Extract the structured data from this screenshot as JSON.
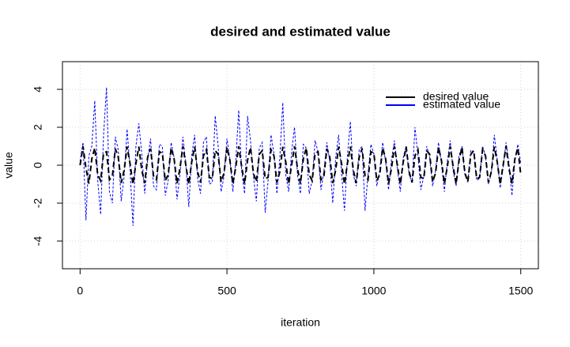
{
  "chart_data": {
    "type": "line",
    "title": "desired and estimated value",
    "xlabel": "iteration",
    "ylabel": "value",
    "x": [
      0,
      10,
      20,
      30,
      40,
      50,
      60,
      70,
      80,
      90,
      100,
      110,
      120,
      130,
      140,
      150,
      160,
      170,
      180,
      190,
      200,
      210,
      220,
      230,
      240,
      250,
      260,
      270,
      280,
      290,
      300,
      310,
      320,
      330,
      340,
      350,
      360,
      370,
      380,
      390,
      400,
      410,
      420,
      430,
      440,
      450,
      460,
      470,
      480,
      490,
      500,
      510,
      520,
      530,
      540,
      550,
      560,
      570,
      580,
      590,
      600,
      610,
      620,
      630,
      640,
      650,
      660,
      670,
      680,
      690,
      700,
      710,
      720,
      730,
      740,
      750,
      760,
      770,
      780,
      790,
      800,
      810,
      820,
      830,
      840,
      850,
      860,
      870,
      880,
      890,
      900,
      910,
      920,
      930,
      940,
      950,
      960,
      970,
      980,
      990,
      1000,
      1010,
      1020,
      1030,
      1040,
      1050,
      1060,
      1070,
      1080,
      1090,
      1100,
      1110,
      1120,
      1130,
      1140,
      1150,
      1160,
      1170,
      1180,
      1190,
      1200,
      1210,
      1220,
      1230,
      1240,
      1250,
      1260,
      1270,
      1280,
      1290,
      1300,
      1310,
      1320,
      1330,
      1340,
      1350,
      1360,
      1370,
      1380,
      1390,
      1400,
      1410,
      1420,
      1430,
      1440,
      1450,
      1460,
      1470,
      1480,
      1490,
      1500
    ],
    "series": [
      {
        "name": "desired value",
        "color": "#000000",
        "values": [
          0,
          1.0,
          -0.17,
          -0.97,
          0.34,
          0.91,
          -0.5,
          -0.82,
          0.64,
          0.71,
          -0.77,
          -0.57,
          0.87,
          0.42,
          -0.94,
          -0.26,
          0.98,
          0.09,
          -1,
          0.09,
          0.98,
          -0.26,
          -0.94,
          0.42,
          0.87,
          -0.57,
          -0.77,
          0.71,
          0.64,
          -0.82,
          -0.5,
          0.91,
          0.34,
          -0.97,
          -0.17,
          1.0,
          0,
          -1.0,
          0.17,
          0.97,
          -0.34,
          -0.91,
          0.5,
          0.82,
          -0.64,
          -0.71,
          0.77,
          0.57,
          -0.87,
          -0.42,
          0.94,
          0.26,
          -0.98,
          -0.09,
          1,
          -0.09,
          -0.98,
          0.26,
          0.94,
          -0.42,
          -0.87,
          0.57,
          0.77,
          -0.71,
          -0.64,
          0.82,
          0.5,
          -0.91,
          -0.34,
          0.97,
          0.17,
          -1.0,
          0,
          1.0,
          -0.17,
          -0.97,
          0.34,
          0.91,
          -0.5,
          -0.82,
          0.64,
          0.71,
          -0.77,
          -0.57,
          0.87,
          0.42,
          -0.94,
          -0.26,
          0.98,
          0.09,
          -1,
          0.09,
          0.98,
          -0.26,
          -0.94,
          0.42,
          0.87,
          -0.57,
          -0.77,
          0.71,
          0.64,
          -0.82,
          -0.5,
          0.91,
          0.34,
          -0.97,
          -0.17,
          1.0,
          0,
          -1.0,
          0.17,
          0.97,
          -0.34,
          -0.91,
          0.5,
          0.82,
          -0.64,
          -0.71,
          0.77,
          0.57,
          -0.87,
          -0.42,
          0.94,
          0.26,
          -0.98,
          -0.09,
          1,
          -0.09,
          -0.98,
          0.26,
          0.94,
          -0.42,
          -0.87,
          0.57,
          0.77,
          -0.71,
          -0.64,
          0.82,
          0.5,
          -0.91,
          -0.34,
          0.97,
          0.17,
          -1.0,
          0,
          1.0,
          -0.17,
          -0.97,
          0.34,
          0.91,
          -0.5
        ]
      },
      {
        "name": "estimated value",
        "color": "#0000ff",
        "values": [
          0.2,
          1.2,
          -2.9,
          0.5,
          1.0,
          3.4,
          -0.8,
          -2.6,
          1.6,
          4.1,
          -1.4,
          -2.0,
          1.5,
          0.8,
          -1.9,
          -0.6,
          1.9,
          -0.2,
          -3.2,
          1.0,
          2.2,
          0.6,
          -1.5,
          0.3,
          1.4,
          -1.1,
          -1.3,
          1.1,
          1.0,
          -1.6,
          -0.8,
          1.2,
          0.4,
          -1.8,
          -0.5,
          1.5,
          0.1,
          -2.2,
          0.5,
          1.6,
          -0.7,
          -1.5,
          1.2,
          1.5,
          -1.0,
          -0.9,
          2.6,
          1.0,
          -1.4,
          -0.6,
          1.4,
          0.3,
          -1.4,
          0.2,
          2.9,
          -0.3,
          -1.5,
          2.6,
          1.3,
          -0.6,
          -1.9,
          0.9,
          1.2,
          -2.5,
          -0.8,
          1.6,
          0.6,
          -1.5,
          0.4,
          3.3,
          -0.5,
          -1.4,
          0.7,
          2.0,
          -0.5,
          -1.5,
          1.1,
          0.9,
          -1.5,
          -0.8,
          1.3,
          0.7,
          -1.3,
          -0.3,
          1.2,
          0.2,
          -2.0,
          0.4,
          1.6,
          -0.4,
          -2.4,
          0.5,
          2.3,
          -0.5,
          -1.1,
          0.8,
          1.0,
          -2.4,
          -0.5,
          1.1,
          0.6,
          -1.1,
          -0.3,
          1.2,
          0.2,
          -1.3,
          0.3,
          1.3,
          -0.2,
          -1.4,
          0.4,
          1.0,
          -0.5,
          -0.9,
          2.0,
          0.5,
          -1.3,
          -0.6,
          1.0,
          0.4,
          -1.1,
          -0.3,
          1.2,
          0.1,
          -1.4,
          0.2,
          1.3,
          -0.3,
          -1.1,
          0.5,
          1.0,
          -0.5,
          -0.9,
          0.8,
          0.7,
          -0.8,
          -0.7,
          1.0,
          0.5,
          -1.0,
          -0.4,
          1.6,
          0.3,
          -1.2,
          -0.1,
          1.2,
          0.1,
          -1.6,
          0.2,
          1.1,
          0.1
        ]
      }
    ],
    "xlim": [
      -60,
      1560
    ],
    "xticks": [
      0,
      500,
      1000,
      1500
    ],
    "ylim": [
      -5.46,
      5.46
    ],
    "yticks": [
      -4,
      -2,
      0,
      2,
      4
    ],
    "grid": true,
    "legend": "topright"
  }
}
